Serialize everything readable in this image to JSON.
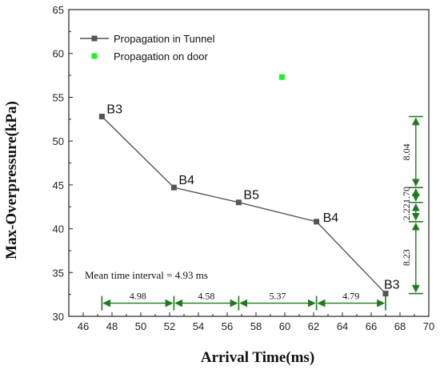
{
  "chart_data": {
    "type": "scatter",
    "xlabel": "Arrival Time(ms)",
    "ylabel": "Max-Overpressure(kPa)",
    "xlim": [
      45,
      70
    ],
    "ylim": [
      30,
      65
    ],
    "xticks": [
      46,
      48,
      50,
      52,
      54,
      56,
      58,
      60,
      62,
      64,
      66,
      68,
      70
    ],
    "yticks": [
      30,
      35,
      40,
      45,
      50,
      55,
      60,
      65
    ],
    "legend_position": "top-left",
    "series": [
      {
        "name": "Propagation in Tunnel",
        "style": "line+square",
        "color": "#555555",
        "x": [
          47.3,
          52.3,
          56.8,
          62.2,
          67.0
        ],
        "y": [
          52.8,
          44.7,
          43.0,
          40.8,
          32.6
        ],
        "labels": [
          "B3",
          "B4",
          "B5",
          "B4",
          "B3"
        ]
      },
      {
        "name": "Propagation on door",
        "style": "square",
        "color": "#22ee22",
        "x": [
          59.8
        ],
        "y": [
          57.3
        ]
      }
    ],
    "time_intervals": {
      "y": 31.5,
      "boundaries": [
        47.3,
        52.3,
        56.8,
        62.2,
        67.0
      ],
      "labels": [
        "4.98",
        "4.58",
        "5.37",
        "4.79"
      ]
    },
    "pressure_intervals": {
      "x": 69.1,
      "boundaries": [
        52.8,
        44.7,
        43.0,
        40.8,
        32.6
      ],
      "labels": [
        "8.04",
        "1.70",
        "2.22",
        "8.23"
      ]
    },
    "annotation": "Mean time interval  = 4.93 ms",
    "interval_color": "#1f7a1f"
  }
}
